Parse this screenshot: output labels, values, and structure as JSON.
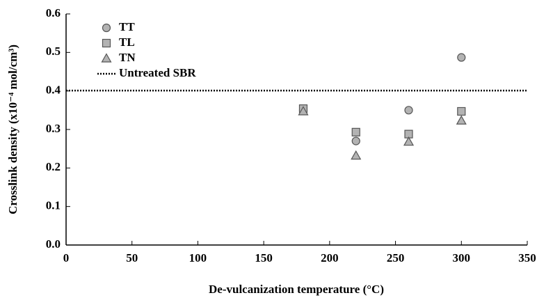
{
  "chart_data": {
    "type": "scatter",
    "xlabel": "De-vulcanization temperature (°C)",
    "ylabel": "Crosslink density (x10⁻⁴ mol/cm³)",
    "x": [
      180,
      220,
      260,
      300
    ],
    "series": [
      {
        "name": "TT",
        "marker": "circle",
        "color": "#b3b3b3",
        "values": [
          0.35,
          0.27,
          0.35,
          0.487
        ]
      },
      {
        "name": "TL",
        "marker": "square",
        "color": "#b3b3b3",
        "values": [
          0.354,
          0.293,
          0.288,
          0.347
        ]
      },
      {
        "name": "TN",
        "marker": "triangle",
        "color": "#b3b3b3",
        "values": [
          0.347,
          0.232,
          0.268,
          0.323
        ]
      }
    ],
    "reference_lines": [
      {
        "name": "Untreated SBR",
        "value": 0.401,
        "style": "dotted",
        "color": "#000000"
      }
    ],
    "xlim": [
      0,
      350
    ],
    "xticks": [
      0,
      50,
      100,
      150,
      200,
      250,
      300,
      350
    ],
    "ylim": [
      0,
      0.6
    ],
    "yticks": [
      {
        "value": 0,
        "label": "0.0"
      },
      0.1,
      0.2,
      0.3,
      0.4,
      0.5,
      0.6
    ],
    "legend": "upper left",
    "grid": false
  }
}
